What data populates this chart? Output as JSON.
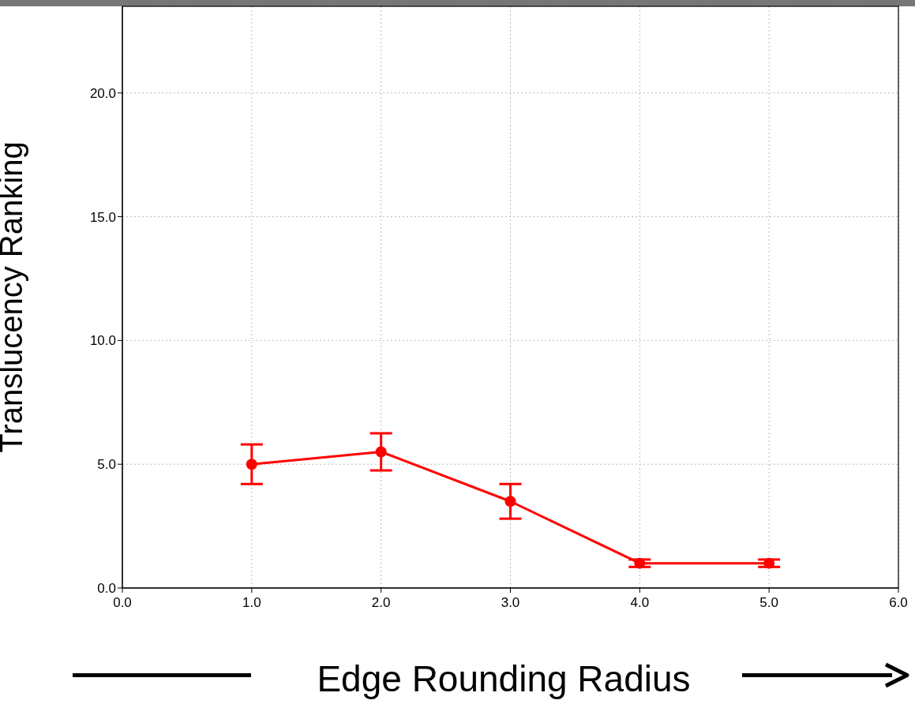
{
  "chart_data": {
    "type": "line",
    "xlabel": "Edge Rounding Radius",
    "ylabel": "Translucency Ranking",
    "x": [
      1,
      2,
      3,
      4,
      5
    ],
    "series": [
      {
        "color": "#ff0000",
        "values": [
          5.0,
          5.5,
          3.5,
          1.0,
          1.0
        ],
        "errors": [
          0.8,
          0.75,
          0.7,
          0.15,
          0.15
        ]
      }
    ],
    "xlim": [
      0,
      6
    ],
    "ylim": [
      0,
      23.5
    ],
    "xticks": [
      {
        "value": 0,
        "label": "0.0"
      },
      {
        "value": 1,
        "label": "1.0"
      },
      {
        "value": 2,
        "label": "2.0"
      },
      {
        "value": 3,
        "label": "3.0"
      },
      {
        "value": 4,
        "label": "4.0"
      },
      {
        "value": 5,
        "label": "5.0"
      },
      {
        "value": 6,
        "label": "6.0"
      }
    ],
    "yticks": [
      {
        "value": 0,
        "label": "0.0"
      },
      {
        "value": 5,
        "label": "5.0"
      },
      {
        "value": 10,
        "label": "10.0"
      },
      {
        "value": 15,
        "label": "15.0"
      },
      {
        "value": 20,
        "label": "20.0"
      }
    ],
    "grid": true,
    "marker": "circle",
    "line_style": "solid",
    "legend": false
  }
}
